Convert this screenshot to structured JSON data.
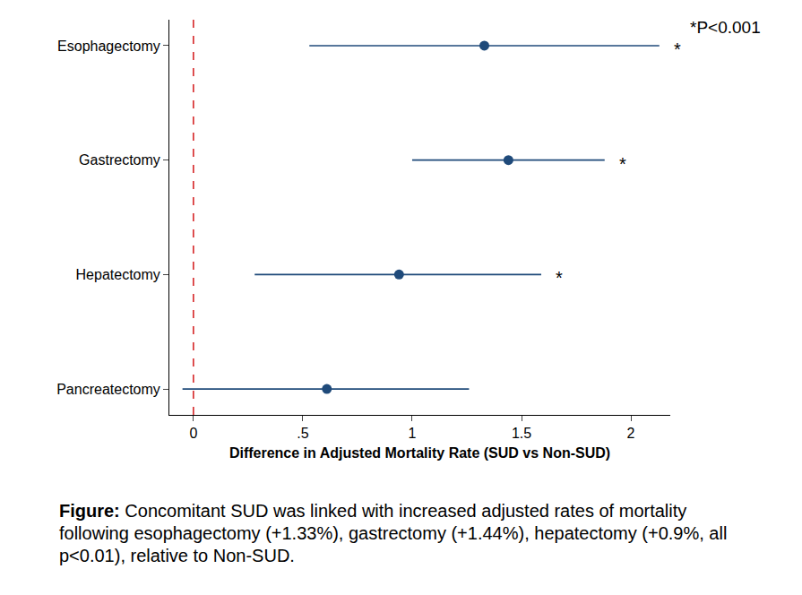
{
  "chart_data": {
    "type": "forest",
    "categories": [
      "Esophagectomy",
      "Gastrectomy",
      "Hepatectomy",
      "Pancreatectomy"
    ],
    "values": [
      1.33,
      1.44,
      0.94,
      0.61
    ],
    "ci_low": [
      0.53,
      1.0,
      0.28,
      -0.05
    ],
    "ci_high": [
      2.13,
      1.88,
      1.59,
      1.26
    ],
    "significance": [
      "*",
      "*",
      "*",
      null
    ],
    "color": "#1f4a7a",
    "xlabel": "Difference in Adjusted Mortality Rate (SUD vs Non-SUD)",
    "xlim": [
      -0.11,
      2.18
    ],
    "xticks": [
      0,
      {
        "value": 0.5,
        "label": ".5"
      },
      1,
      1.5,
      2
    ],
    "grid": false,
    "reference_line": {
      "value": 0,
      "color": "#d62728",
      "line_style": "dash"
    },
    "annotations": [
      "*P<0.001"
    ],
    "caption": {
      "label": "Figure:",
      "text": "Concomitant SUD was linked with increased adjusted rates of mortality following esophagectomy (+1.33%), gastrectomy (+1.44%), hepatectomy (+0.9%, all p<0.01), relative to Non-SUD."
    }
  }
}
